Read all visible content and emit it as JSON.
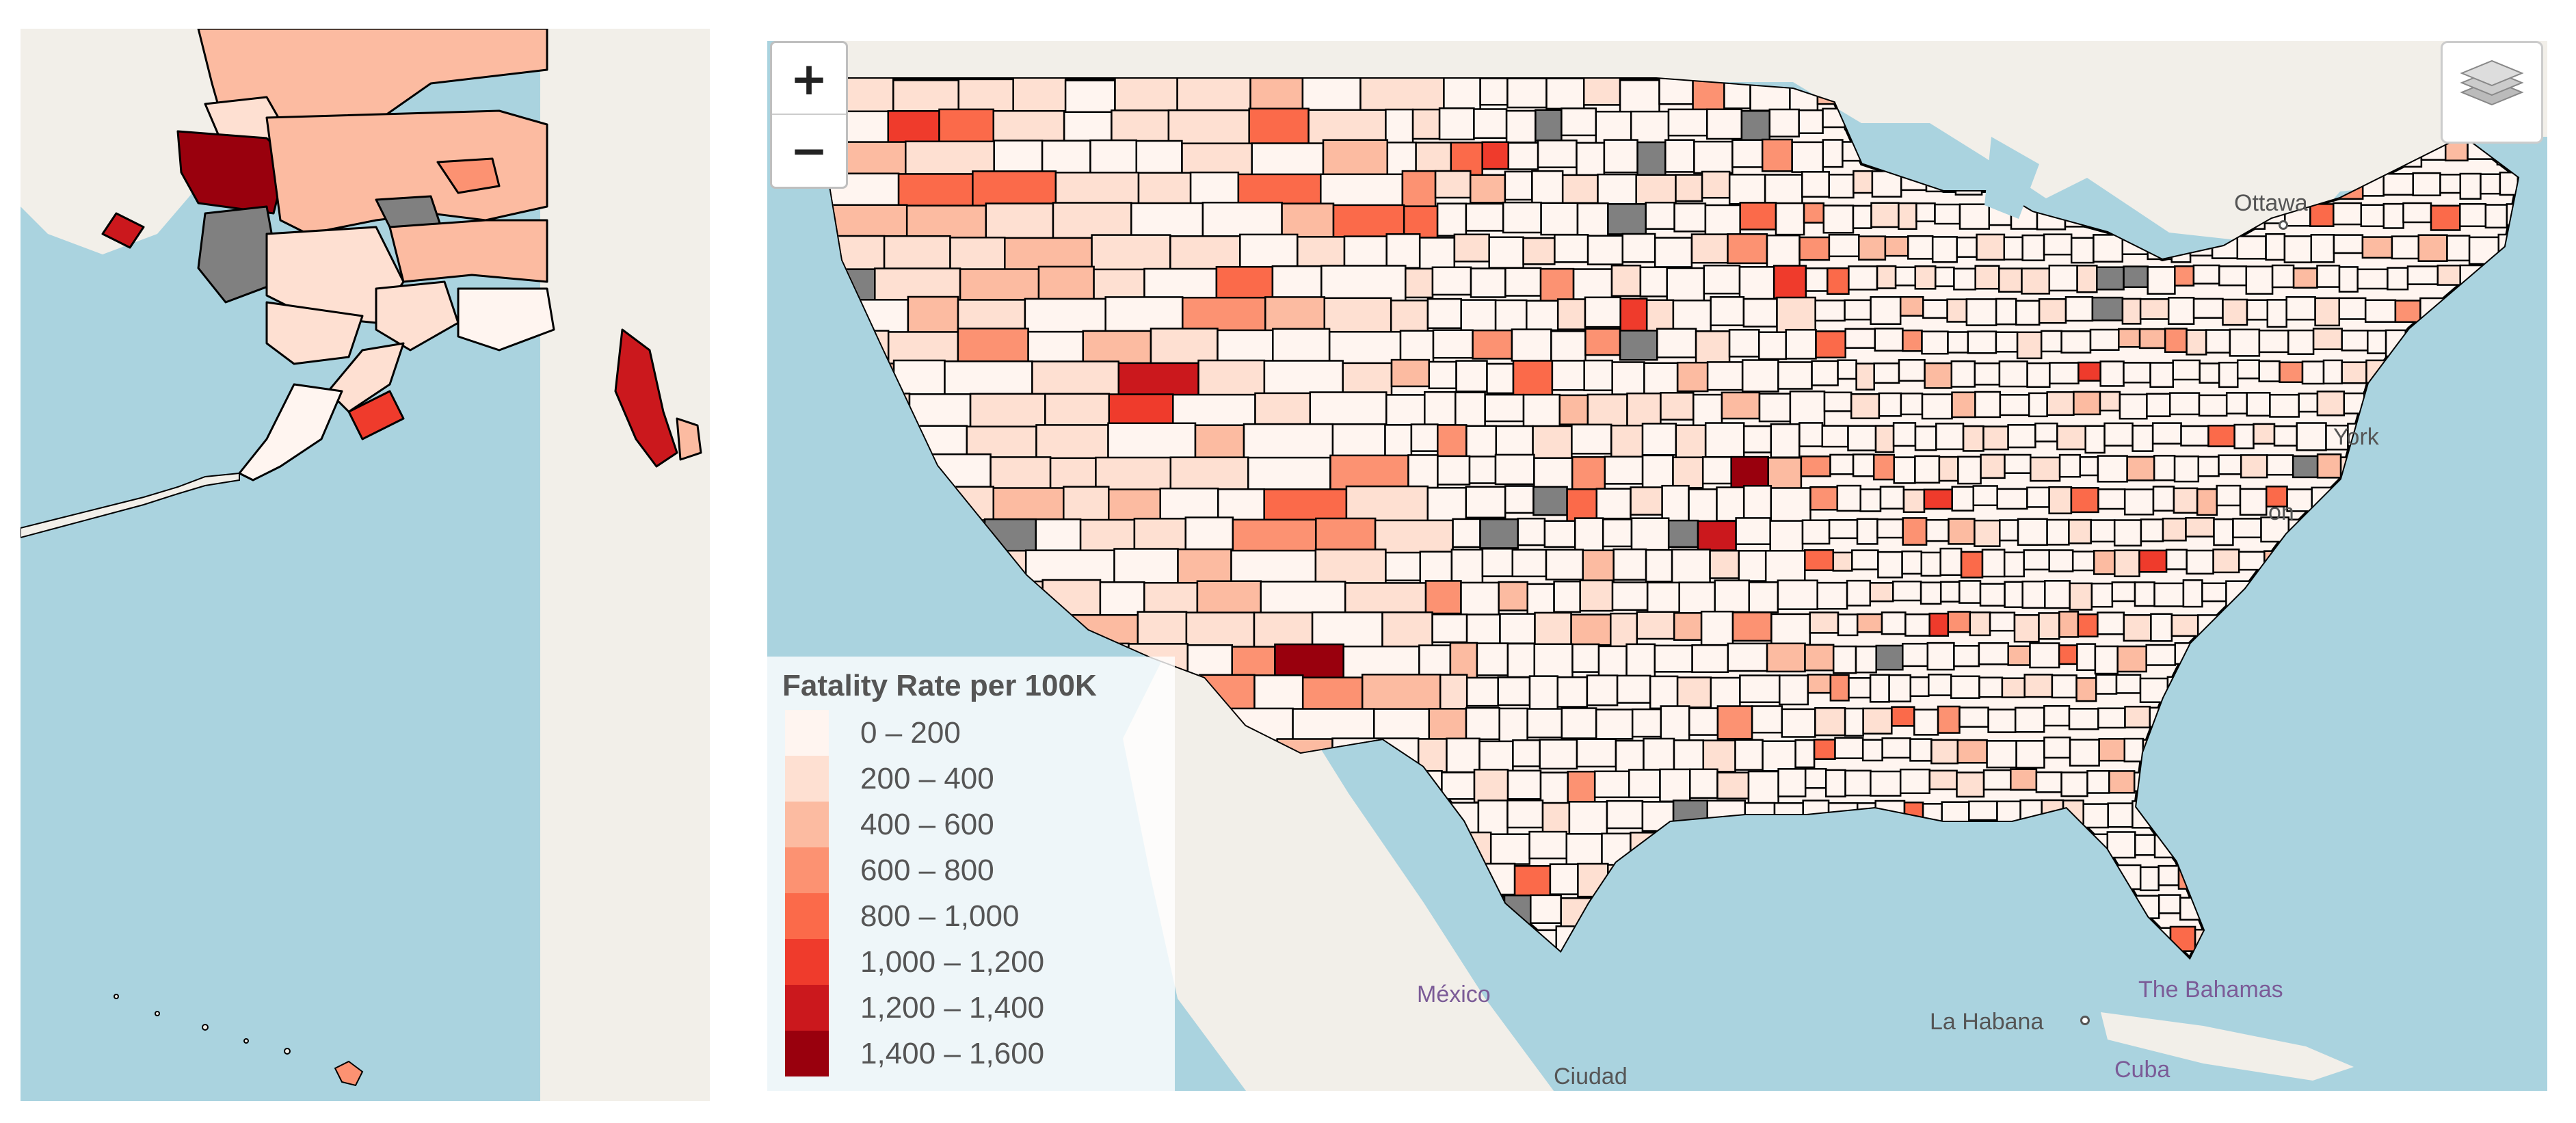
{
  "legend": {
    "title": "Fatality Rate per 100K",
    "items": [
      {
        "label": "0 – 200",
        "color": "#fff5f0"
      },
      {
        "label": "200 – 400",
        "color": "#fee0d2"
      },
      {
        "label": "400 – 600",
        "color": "#fcbba1"
      },
      {
        "label": "600 – 800",
        "color": "#fc9272"
      },
      {
        "label": "800 – 1,000",
        "color": "#fb6a4a"
      },
      {
        "label": "1,000 – 1,200",
        "color": "#ef3b2c"
      },
      {
        "label": "1,200 – 1,400",
        "color": "#cb181d"
      },
      {
        "label": "1,400 – 1,600",
        "color": "#99000d"
      }
    ],
    "no_data_color": "#808080"
  },
  "controls": {
    "zoom_in_label": "+",
    "zoom_out_label": "−"
  },
  "place_labels": {
    "ottawa": "Ottawa",
    "new_york_fragment": "York",
    "washington_fragment": "on",
    "mexico": "México",
    "la_habana": "La Habana",
    "the_bahamas": "The Bahamas",
    "cuba": "Cuba",
    "ciudad": "Ciudad"
  },
  "colors": {
    "water": "#aad3df",
    "land": "#f2efe9",
    "county_border": "#000000"
  }
}
